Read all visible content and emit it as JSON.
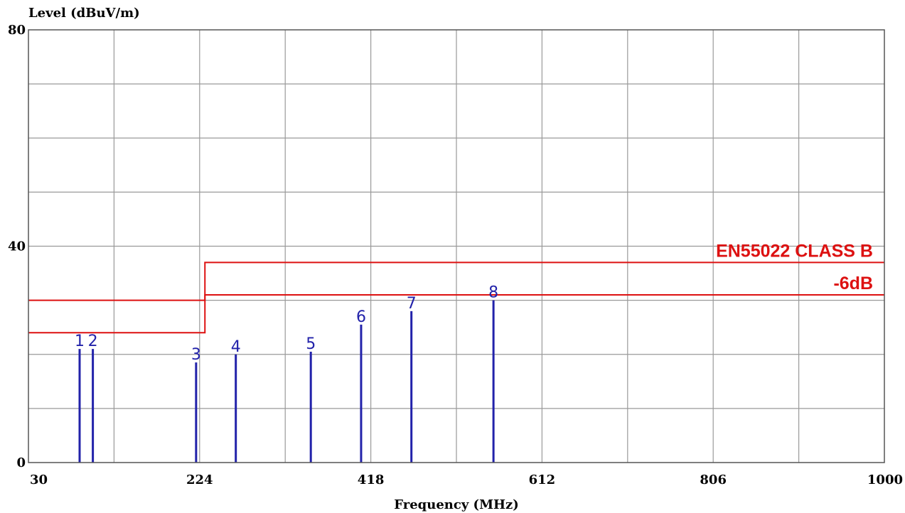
{
  "chart_data": {
    "type": "line",
    "ylabel": "Level (dBuV/m)",
    "xlabel": "Frequency (MHz)",
    "xlim": [
      30,
      1000
    ],
    "ylim": [
      0,
      80
    ],
    "x_ticks": [
      30,
      224,
      418,
      612,
      806,
      1000
    ],
    "y_ticks": [
      0,
      40,
      80
    ],
    "grid": true,
    "x_grid_step": 97,
    "y_grid_step": 10,
    "limit_lines": [
      {
        "name": "EN55022 CLASS B",
        "color": "#dd1111",
        "points": [
          [
            30,
            30
          ],
          [
            230,
            30
          ],
          [
            230,
            37
          ],
          [
            1000,
            37
          ]
        ]
      },
      {
        "name": "-6dB",
        "color": "#dd1111",
        "points": [
          [
            30,
            24
          ],
          [
            230,
            24
          ],
          [
            230,
            31
          ],
          [
            1000,
            31
          ]
        ]
      }
    ],
    "markers": [
      {
        "label": "1",
        "freq": 88,
        "level": 21
      },
      {
        "label": "2",
        "freq": 103,
        "level": 21
      },
      {
        "label": "3",
        "freq": 220,
        "level": 18.5
      },
      {
        "label": "4",
        "freq": 265,
        "level": 20
      },
      {
        "label": "5",
        "freq": 350,
        "level": 20.5
      },
      {
        "label": "6",
        "freq": 407,
        "level": 25.5
      },
      {
        "label": "7",
        "freq": 464,
        "level": 28
      },
      {
        "label": "8",
        "freq": 557,
        "level": 30
      }
    ],
    "marker_color": "#2222aa"
  }
}
